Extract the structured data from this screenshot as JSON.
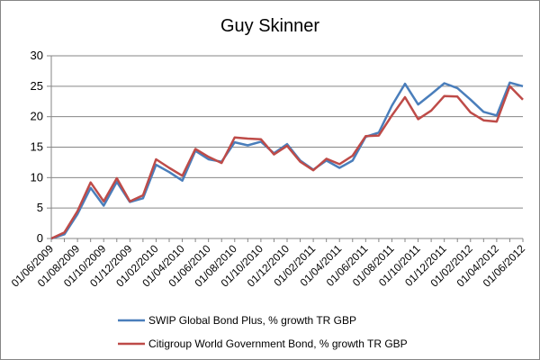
{
  "chart_data": {
    "type": "line",
    "title": "Guy Skinner",
    "xlabel": "",
    "ylabel": "",
    "ylim": [
      0,
      30
    ],
    "yticks": [
      0,
      5,
      10,
      15,
      20,
      25,
      30
    ],
    "grid": "horizontal",
    "legend_position": "bottom",
    "x": [
      "01/06/2009",
      "01/07/2009",
      "01/08/2009",
      "01/09/2009",
      "01/10/2009",
      "01/11/2009",
      "01/12/2009",
      "01/01/2010",
      "01/02/2010",
      "01/03/2010",
      "01/04/2010",
      "01/05/2010",
      "01/06/2010",
      "01/07/2010",
      "01/08/2010",
      "01/09/2010",
      "01/10/2010",
      "01/11/2010",
      "01/12/2010",
      "01/01/2011",
      "01/02/2011",
      "01/03/2011",
      "01/04/2011",
      "01/05/2011",
      "01/06/2011",
      "01/07/2011",
      "01/08/2011",
      "01/09/2011",
      "01/10/2011",
      "01/11/2011",
      "01/12/2011",
      "01/01/2012",
      "01/02/2012",
      "01/03/2012",
      "01/04/2012",
      "01/05/2012",
      "01/06/2012"
    ],
    "xtick_labels": [
      "01/06/2009",
      "01/08/2009",
      "01/10/2009",
      "01/12/2009",
      "01/02/2010",
      "01/04/2010",
      "01/06/2010",
      "01/08/2010",
      "01/10/2010",
      "01/12/2010",
      "01/02/2011",
      "01/04/2011",
      "01/06/2011",
      "01/08/2011",
      "01/10/2011",
      "01/12/2011",
      "01/02/2012",
      "01/04/2012",
      "01/06/2012"
    ],
    "series": [
      {
        "name": "SWIP Global Bond Plus, % growth TR GBP",
        "color": "#4a7ebb",
        "values": [
          0,
          0.7,
          4.0,
          8.3,
          5.4,
          9.3,
          6.0,
          6.6,
          12.1,
          10.9,
          9.5,
          14.4,
          13.0,
          12.6,
          15.8,
          15.3,
          15.9,
          14.0,
          15.5,
          12.8,
          11.3,
          12.8,
          11.6,
          12.8,
          16.7,
          17.4,
          21.8,
          25.4,
          22.0,
          23.7,
          25.5,
          24.7,
          22.8,
          20.8,
          20.2,
          25.6,
          25.0
        ]
      },
      {
        "name": "Citigroup World Government Bond, % growth TR GBP",
        "color": "#be4b48",
        "values": [
          0,
          1.0,
          4.5,
          9.2,
          6.1,
          9.9,
          6.1,
          7.1,
          13.0,
          11.6,
          10.3,
          14.7,
          13.4,
          12.4,
          16.6,
          16.4,
          16.3,
          13.8,
          15.2,
          12.6,
          11.2,
          13.1,
          12.2,
          13.6,
          16.8,
          16.9,
          20.2,
          23.2,
          19.6,
          21.0,
          23.4,
          23.3,
          20.7,
          19.4,
          19.2,
          25.0,
          22.8
        ]
      }
    ]
  }
}
